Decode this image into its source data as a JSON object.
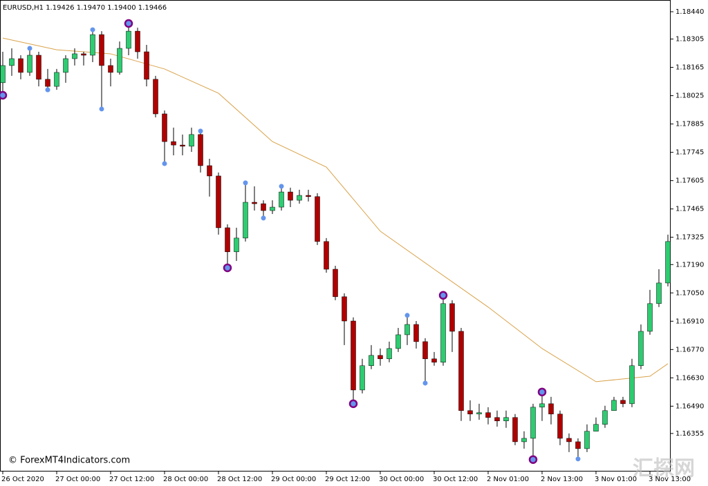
{
  "chart_data": {
    "type": "candlestick",
    "title": "EURUSD,H1  1.19426 1.19470 1.19400 1.19466",
    "watermark": "© ForexMT4Indicators.com",
    "logo": "汇探网",
    "categories": [
      "26 Oct 2020",
      null,
      null,
      null,
      null,
      null,
      "27 Oct 00:00",
      null,
      null,
      null,
      null,
      null,
      "27 Oct 12:00",
      null,
      null,
      null,
      null,
      null,
      "28 Oct 00:00",
      null,
      null,
      null,
      null,
      null,
      "28 Oct 12:00",
      null,
      null,
      null,
      null,
      null,
      "29 Oct 00:00",
      null,
      null,
      null,
      null,
      null,
      "29 Oct 12:00",
      null,
      null,
      null,
      null,
      null,
      "30 Oct 00:00",
      null,
      null,
      null,
      null,
      null,
      "30 Oct 12:00",
      null,
      null,
      null,
      null,
      null,
      "2 Nov 01:00",
      null,
      null,
      null,
      null,
      null,
      "2 Nov 13:00",
      null,
      null,
      null,
      null,
      null,
      "3 Nov 01:00",
      null,
      null,
      null,
      null,
      null,
      "3 Nov 13:00",
      null,
      null
    ],
    "open": [
      1.18089,
      1.18174,
      1.18208,
      1.1814,
      1.18225,
      1.18106,
      1.18071,
      1.1814,
      1.18208,
      1.18232,
      1.18225,
      1.18327,
      1.18174,
      1.1814,
      1.18259,
      1.18344,
      1.18242,
      1.18106,
      1.17935,
      1.17798,
      1.17781,
      1.17775,
      1.17833,
      1.17679,
      1.17628,
      1.17372,
      1.17253,
      1.17321,
      1.17498,
      1.17491,
      1.17457,
      1.17474,
      1.17549,
      1.17508,
      1.17532,
      1.17526,
      1.17304,
      1.17167,
      1.17031,
      1.16911,
      1.1657,
      1.1669,
      1.16741,
      1.16724,
      1.16775,
      1.16843,
      1.16894,
      1.16809,
      1.16724,
      1.16707,
      1.16997,
      1.1686,
      1.16468,
      1.16451,
      1.16458,
      1.16434,
      1.16417,
      1.16434,
      1.16314,
      1.16331,
      1.16485,
      1.16502,
      1.16451,
      1.16331,
      1.16314,
      1.1628,
      1.16366,
      1.164,
      1.16468,
      1.16519,
      1.16502,
      1.1669,
      1.1686,
      1.16997,
      1.17099
    ],
    "high": [
      1.18242,
      1.18259,
      1.18225,
      1.18266,
      1.18242,
      1.18157,
      1.18157,
      1.18225,
      1.18259,
      1.18242,
      1.18355,
      1.18344,
      1.18208,
      1.18293,
      1.18385,
      1.18361,
      1.18276,
      1.18123,
      1.17952,
      1.17867,
      1.17833,
      1.17867,
      1.1785,
      1.17713,
      1.17645,
      1.17389,
      1.17372,
      1.17594,
      1.17577,
      1.17508,
      1.17508,
      1.17577,
      1.1757,
      1.1756,
      1.1756,
      1.17543,
      1.17321,
      1.17184,
      1.17048,
      1.16929,
      1.16724,
      1.16792,
      1.16775,
      1.16809,
      1.16877,
      1.16935,
      1.16911,
      1.16826,
      1.16758,
      1.17038,
      1.17014,
      1.16877,
      1.16519,
      1.16502,
      1.16485,
      1.16468,
      1.16468,
      1.16451,
      1.16366,
      1.16502,
      1.1656,
      1.16536,
      1.16468,
      1.16355,
      1.16331,
      1.164,
      1.16434,
      1.16492,
      1.16536,
      1.16536,
      1.16724,
      1.16894,
      1.17065,
      1.17167,
      1.17338
    ],
    "low": [
      1.18027,
      1.18123,
      1.18106,
      1.18123,
      1.18071,
      1.18048,
      1.18054,
      1.18089,
      1.18174,
      1.18174,
      1.18191,
      1.17952,
      1.18071,
      1.18129,
      1.18225,
      1.18208,
      1.18071,
      1.17918,
      1.17689,
      1.1773,
      1.1773,
      1.17747,
      1.17645,
      1.17526,
      1.17338,
      1.17174,
      1.17208,
      1.17304,
      1.17457,
      1.17413,
      1.1744,
      1.17457,
      1.17474,
      1.17491,
      1.17502,
      1.17287,
      1.1715,
      1.17014,
      1.16792,
      1.16502,
      1.16553,
      1.16673,
      1.1669,
      1.16707,
      1.16758,
      1.16792,
      1.16775,
      1.16604,
      1.1669,
      1.1669,
      1.16758,
      1.16417,
      1.16417,
      1.16423,
      1.164,
      1.16389,
      1.16383,
      1.16297,
      1.1628,
      1.16229,
      1.16417,
      1.164,
      1.16297,
      1.16263,
      1.16229,
      1.16263,
      1.16366,
      1.16383,
      1.16468,
      1.16485,
      1.16485,
      1.16673,
      1.16843,
      1.1698,
      1.17082
    ],
    "close": [
      1.18174,
      1.18208,
      1.1814,
      1.18225,
      1.18106,
      1.18071,
      1.1814,
      1.18208,
      1.18232,
      1.18225,
      1.18327,
      1.18174,
      1.1814,
      1.18259,
      1.18344,
      1.18242,
      1.18106,
      1.17935,
      1.17798,
      1.17781,
      1.17775,
      1.17833,
      1.17679,
      1.17628,
      1.17372,
      1.17253,
      1.17321,
      1.17498,
      1.17491,
      1.17457,
      1.17474,
      1.17549,
      1.17508,
      1.17532,
      1.17526,
      1.17304,
      1.17167,
      1.17031,
      1.16911,
      1.1657,
      1.1669,
      1.16741,
      1.16724,
      1.16775,
      1.16843,
      1.16894,
      1.16809,
      1.16724,
      1.16707,
      1.16997,
      1.1686,
      1.16468,
      1.16451,
      1.16458,
      1.16434,
      1.16417,
      1.16434,
      1.16314,
      1.16331,
      1.16485,
      1.16502,
      1.16451,
      1.16331,
      1.16314,
      1.1628,
      1.16366,
      1.164,
      1.16468,
      1.16519,
      1.16502,
      1.1669,
      1.1686,
      1.16997,
      1.17099,
      1.17304
    ],
    "up_color": "#2ecc71",
    "down_color": "#b00000",
    "moving_average": {
      "color": "#d9a24a",
      "x": [
        0,
        6,
        12,
        18,
        24,
        30,
        36,
        42,
        48,
        54,
        60,
        66,
        72,
        74
      ],
      "values": [
        1.1831,
        1.18252,
        1.18232,
        1.18157,
        1.18037,
        1.17798,
        1.17672,
        1.17355,
        1.17167,
        1.1698,
        1.16775,
        1.16611,
        1.16638,
        1.167
      ]
    },
    "minor_points": {
      "color": "#6495ed",
      "x": [
        3,
        5,
        10,
        11,
        18,
        22,
        27,
        29,
        31,
        45,
        47,
        64
      ],
      "values": [
        1.18259,
        1.18054,
        1.18351,
        1.17959,
        1.17689,
        1.1785,
        1.17594,
        1.1742,
        1.17577,
        1.16939,
        1.16604,
        1.16229
      ]
    },
    "major_points": {
      "color": "#800080",
      "x": [
        0,
        14,
        25,
        39,
        49,
        59,
        60
      ],
      "values": [
        1.18027,
        1.18382,
        1.17174,
        1.16502,
        1.17038,
        1.16226,
        1.1656
      ]
    },
    "xlim": [
      -0.3,
      74.3
    ],
    "ylim": [
      1.16167,
      1.18498
    ],
    "yticks": [
      {
        "value": 1.1844,
        "label": "1.18440"
      },
      1.18305,
      1.18165,
      1.18025,
      1.17885,
      1.17745,
      1.17605,
      1.17465,
      1.17325,
      {
        "value": 1.1719,
        "label": "1.17190"
      },
      {
        "value": 1.1705,
        "label": "1.17050"
      },
      {
        "value": 1.1691,
        "label": "1.16910"
      },
      {
        "value": 1.1677,
        "label": "1.16770"
      },
      {
        "value": 1.1663,
        "label": "1.16630"
      },
      {
        "value": 1.1649,
        "label": "1.16490"
      },
      1.16355
    ]
  }
}
